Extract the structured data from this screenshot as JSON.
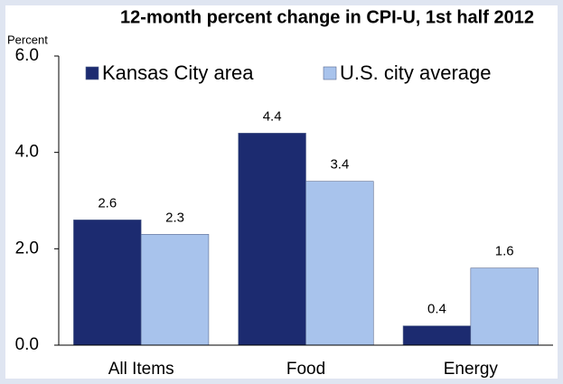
{
  "chart_data": {
    "type": "bar",
    "title": "12-month percent change in CPI-U, 1st half 2012",
    "y_label": "Percent",
    "categories": [
      "All Items",
      "Food",
      "Energy"
    ],
    "series": [
      {
        "name": "Kansas City area",
        "color": "#1c2b70",
        "values": [
          2.6,
          4.4,
          0.4
        ]
      },
      {
        "name": "U.S. city average",
        "color": "#a8c3ec",
        "values": [
          2.3,
          3.4,
          1.6
        ]
      }
    ],
    "ylim": [
      0,
      6
    ],
    "yticks": [
      {
        "value": 0,
        "label": "0.0"
      },
      {
        "value": 2,
        "label": "2.0"
      },
      {
        "value": 4,
        "label": "4.0"
      },
      {
        "value": 6,
        "label": "6.0"
      }
    ],
    "legend": "top-left"
  }
}
